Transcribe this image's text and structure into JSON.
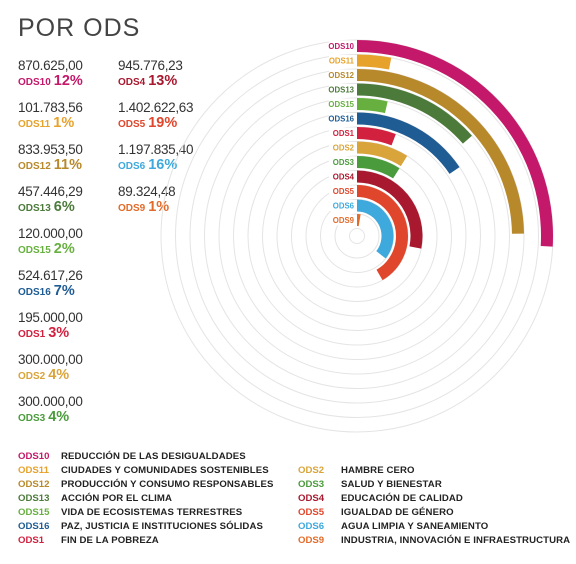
{
  "title": "POR ODS",
  "chart_data": {
    "type": "radial-bar",
    "title": "POR ODS",
    "series": [
      {
        "code": "ODS10",
        "value": "870.625,00",
        "pct": "12%",
        "color": "#c4186a"
      },
      {
        "code": "ODS11",
        "value": "101.783,56",
        "pct": "1%",
        "color": "#e6a22b"
      },
      {
        "code": "ODS12",
        "value": "833.953,50",
        "pct": "11%",
        "color": "#b8892b"
      },
      {
        "code": "ODS13",
        "value": "457.446,29",
        "pct": "6%",
        "color": "#4c7a3a"
      },
      {
        "code": "ODS15",
        "value": "120.000,00",
        "pct": "2%",
        "color": "#67b03f"
      },
      {
        "code": "ODS16",
        "value": "524.617,26",
        "pct": "7%",
        "color": "#1f5c93"
      },
      {
        "code": "ODS1",
        "value": "195.000,00",
        "pct": "3%",
        "color": "#d1213f"
      },
      {
        "code": "ODS2",
        "value": "300.000,00",
        "pct": "4%",
        "color": "#d9a43a"
      },
      {
        "code": "ODS3",
        "value": "300.000,00",
        "pct": "4%",
        "color": "#4a9b3b"
      },
      {
        "code": "ODS4",
        "value": "945.776,23",
        "pct": "13%",
        "color": "#a8182e"
      },
      {
        "code": "ODS5",
        "value": "1.402.622,63",
        "pct": "19%",
        "color": "#e0462b"
      },
      {
        "code": "ODS6",
        "value": "1.197.835,40",
        "pct": "16%",
        "color": "#3ea9dc"
      },
      {
        "code": "ODS9",
        "value": "89.324,48",
        "pct": "1%",
        "color": "#e26b2a"
      }
    ],
    "values": [
      870625.0,
      101783.56,
      833953.5,
      457446.29,
      120000.0,
      524617.26,
      195000.0,
      300000.0,
      300000.0,
      945776.23,
      1402622.63,
      1197835.4,
      89324.48
    ],
    "max_value": 1402622.63,
    "grid": true
  },
  "legend": {
    "left": [
      {
        "code": "ODS10",
        "desc": "REDUCCIÓN DE LAS DESIGUALDADES",
        "color": "#c4186a"
      },
      {
        "code": "ODS11",
        "desc": "CIUDADES Y COMUNIDADES SOSTENIBLES",
        "color": "#e6a22b"
      },
      {
        "code": "ODS12",
        "desc": "PRODUCCIÓN Y CONSUMO RESPONSABLES",
        "color": "#b8892b"
      },
      {
        "code": "ODS13",
        "desc": "ACCIÓN POR EL CLIMA",
        "color": "#4c7a3a"
      },
      {
        "code": "ODS15",
        "desc": "VIDA DE ECOSISTEMAS TERRESTRES",
        "color": "#67b03f"
      },
      {
        "code": "ODS16",
        "desc": "PAZ, JUSTICIA E INSTITUCIONES SÓLIDAS",
        "color": "#1f5c93"
      },
      {
        "code": "ODS1",
        "desc": "FIN DE LA POBREZA",
        "color": "#d1213f"
      }
    ],
    "right": [
      {
        "code": "ODS2",
        "desc": "HAMBRE CERO",
        "color": "#d9a43a"
      },
      {
        "code": "ODS3",
        "desc": "SALUD Y BIENESTAR",
        "color": "#4a9b3b"
      },
      {
        "code": "ODS4",
        "desc": "EDUCACIÓN DE CALIDAD",
        "color": "#a8182e"
      },
      {
        "code": "ODS5",
        "desc": "IGUALDAD DE GÉNERO",
        "color": "#e0462b"
      },
      {
        "code": "ODS6",
        "desc": "AGUA LIMPIA Y SANEAMIENTO",
        "color": "#3ea9dc"
      },
      {
        "code": "ODS9",
        "desc": "INDUSTRIA, INNOVACIÓN E INFRAESTRUCTURA",
        "color": "#e26b2a"
      }
    ]
  }
}
